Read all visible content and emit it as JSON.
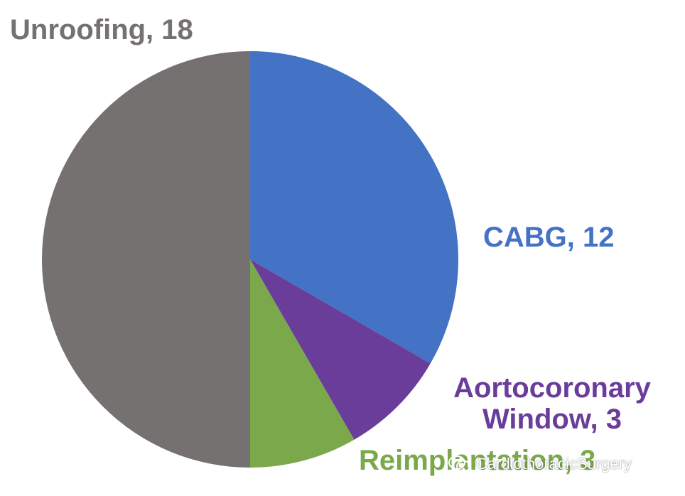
{
  "chart_data": {
    "type": "pie",
    "title": "",
    "slices": [
      {
        "label": "CABG",
        "value": 12,
        "display": "CABG, 12",
        "color": "#4472c4"
      },
      {
        "label": "Aortocoronary Window",
        "value": 3,
        "display_line1": "Aortocoronary",
        "display_line2": "Window, 3",
        "color": "#6a3d9a"
      },
      {
        "label": "Reimplantation",
        "value": 3,
        "display": "Reimplantation, 3",
        "color": "#7aa84b"
      },
      {
        "label": "Unroofing",
        "value": 18,
        "display": "Unroofing, 18",
        "color": "#767171"
      }
    ],
    "start_angle": "12 o'clock",
    "direction": "clockwise",
    "legend": "none (data labels beside slices)"
  },
  "watermark": {
    "text": "CardiothoracicSurgery",
    "icon": "wechat-icon"
  }
}
